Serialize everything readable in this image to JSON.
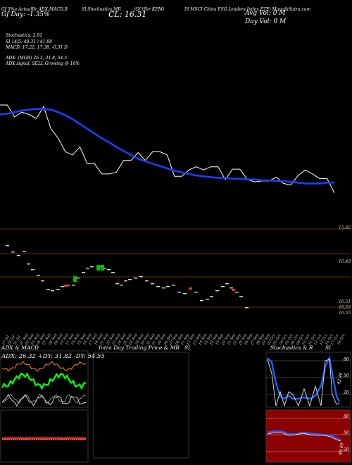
{
  "header": {
    "line1": [
      "Gf 5%a ActualBr ADX,MACD,B",
      "SI,Stochastics,MR",
      "(Gf iShr KEM)",
      "IS MSCI China ESG Leaders Index ETF) MunafaSutra.com"
    ],
    "day_change": "Gf  Day: -1.35%",
    "close": "CL: 16.31",
    "avg_vol": "Avg Vol: 0  M",
    "day_vol": "Day Vol: 0   M"
  },
  "stats": {
    "stochastics": "Stochastics: 2.91",
    "si": "SI 14/5: 49.31 / 41.99",
    "macd": "MACD: 17.22, 17.38, -0.31 D",
    "adx": "ADX:                    (MGR) 26.3,  31.8,  54.5",
    "adx_signal": "ADX  signal: SELL  Growing  @ 16%"
  },
  "chart_data": [
    {
      "type": "line",
      "name": "price-panel",
      "series": [
        {
          "name": "",
          "color": "#ffffff",
          "values": [
            17.42,
            17.42,
            17.27,
            17.33,
            17.3,
            17.25,
            17.4,
            17.12,
            17.0,
            16.83,
            16.79,
            16.89,
            16.68,
            16.68,
            16.55,
            16.55,
            16.57,
            16.72,
            16.72,
            16.82,
            16.72,
            16.83,
            16.83,
            16.79,
            16.52,
            16.52,
            16.6,
            16.64,
            16.6,
            16.64,
            16.64,
            16.48,
            16.61,
            16.61,
            16.48,
            16.45,
            16.46,
            16.46,
            16.51,
            16.43,
            16.41,
            16.53,
            16.6,
            16.55,
            16.49,
            16.49,
            16.31
          ]
        },
        {
          "name": "",
          "color": "#1a3fff",
          "values": [
            17.3,
            17.31,
            17.33,
            17.35,
            17.36,
            17.37,
            17.37,
            17.36,
            17.33,
            17.29,
            17.24,
            17.18,
            17.12,
            17.06,
            17.0,
            16.95,
            16.89,
            16.84,
            16.79,
            16.74,
            16.71,
            16.68,
            16.65,
            16.62,
            16.59,
            16.57,
            16.55,
            16.53,
            16.52,
            16.51,
            16.5,
            16.5,
            16.49,
            16.49,
            16.48,
            16.48,
            16.47,
            16.47,
            16.46,
            16.46,
            16.45,
            16.44,
            16.43,
            16.43,
            16.43,
            16.44,
            16.44
          ]
        }
      ],
      "ylim": [
        15.9,
        17.9
      ]
    },
    {
      "type": "scatter",
      "name": "level-panel",
      "levels": [
        "15.82",
        "16.49",
        "16.51",
        "16.53",
        "16.55"
      ],
      "x": [
        "27 Jul",
        "28 Jul",
        "31 Jul",
        "01 Aug",
        "02 Aug",
        "03 Aug",
        "04 Aug",
        "07 Aug",
        "08 Aug",
        "09 Aug",
        "10 Aug",
        "11 Aug",
        "14 Aug",
        "15 Aug",
        "16 Aug",
        "17 Aug",
        "18 Aug",
        "21 Aug",
        "22 Aug",
        "23 Aug",
        "24 Aug",
        "25 Aug",
        "28 Aug",
        "29 Aug",
        "30 Aug",
        "31 Aug",
        "01 Sep",
        "05 Sep",
        "06 Sep",
        "07 Sep",
        "08 Sep",
        "11 Sep",
        "12 Sep",
        "13 Sep",
        "14 Sep",
        "15 Sep",
        "18 Sep",
        "19 Sep",
        "20 Sep",
        "21 Sep",
        "22 Sep",
        "25 Sep",
        "26 Sep",
        "27 Sep",
        "28 Sep",
        "29 Sep",
        "02 Oct",
        "03 Oct",
        "04 Oct",
        "05 Oct",
        "06 Oct",
        "09 Oct",
        "10 Oct",
        "11 Oct",
        "12 Oct",
        "13 Oct",
        "16 Oct",
        "17 Oct",
        "18 Oct"
      ]
    },
    {
      "type": "line",
      "name": "adx-macd-panel",
      "title": "ADX  & MACD",
      "readout": "ADX: 26.32  +DY: 31.82  -DY: 54.55"
    },
    {
      "type": "bar",
      "name": "intraday-panel",
      "title": "Intra  Day Trading Price  & MR",
      "title2": "SI"
    },
    {
      "type": "line",
      "name": "stochastics-panel",
      "title": "Stochastics & R",
      "title2": "SI",
      "ticks_upper": [
        "80",
        "50",
        "20"
      ],
      "ticks_lower": [
        "80",
        "50",
        "20"
      ],
      "readout_upper": "42.46",
      "readout_lower": "48.09"
    }
  ]
}
